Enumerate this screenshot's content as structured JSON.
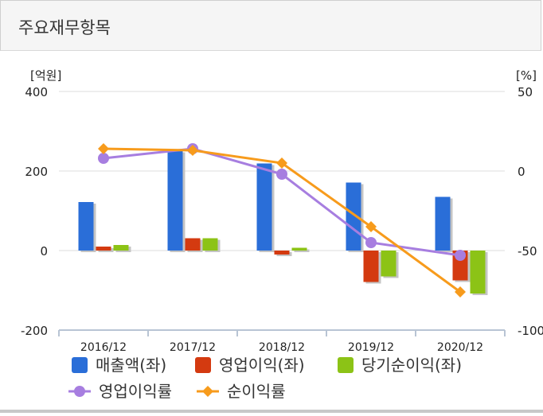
{
  "header": {
    "title": "주요재무항목"
  },
  "chart_data": {
    "type": "bar",
    "categories": [
      "2016/12",
      "2017/12",
      "2018/12",
      "2019/12",
      "2020/12"
    ],
    "left_axis": {
      "unit": "[억원]",
      "range": [
        -200,
        400
      ],
      "ticks": [
        -200,
        0,
        200,
        400
      ]
    },
    "right_axis": {
      "unit": "[%]",
      "range": [
        -100,
        50
      ],
      "ticks": [
        -100,
        -50,
        0,
        50
      ]
    },
    "bar_series": [
      {
        "name": "매출액(좌)",
        "color": "#2a6ed8",
        "values": [
          122,
          251,
          219,
          171,
          135
        ]
      },
      {
        "name": "영업이익(좌)",
        "color": "#d43a10",
        "values": [
          10,
          31,
          -10,
          -79,
          -75
        ]
      },
      {
        "name": "당기순이익(좌)",
        "color": "#8cc316",
        "values": [
          14,
          31,
          7,
          -65,
          -108
        ]
      }
    ],
    "line_series": [
      {
        "name": "영업이익률",
        "color": "#a77ee0",
        "marker": "circle",
        "values": [
          8,
          14,
          -2,
          -45,
          -53
        ]
      },
      {
        "name": "순이익률",
        "color": "#f79b1c",
        "marker": "diamond",
        "values": [
          14,
          13,
          5,
          -35,
          -76
        ]
      }
    ],
    "grid": true,
    "legend": "bottom"
  }
}
